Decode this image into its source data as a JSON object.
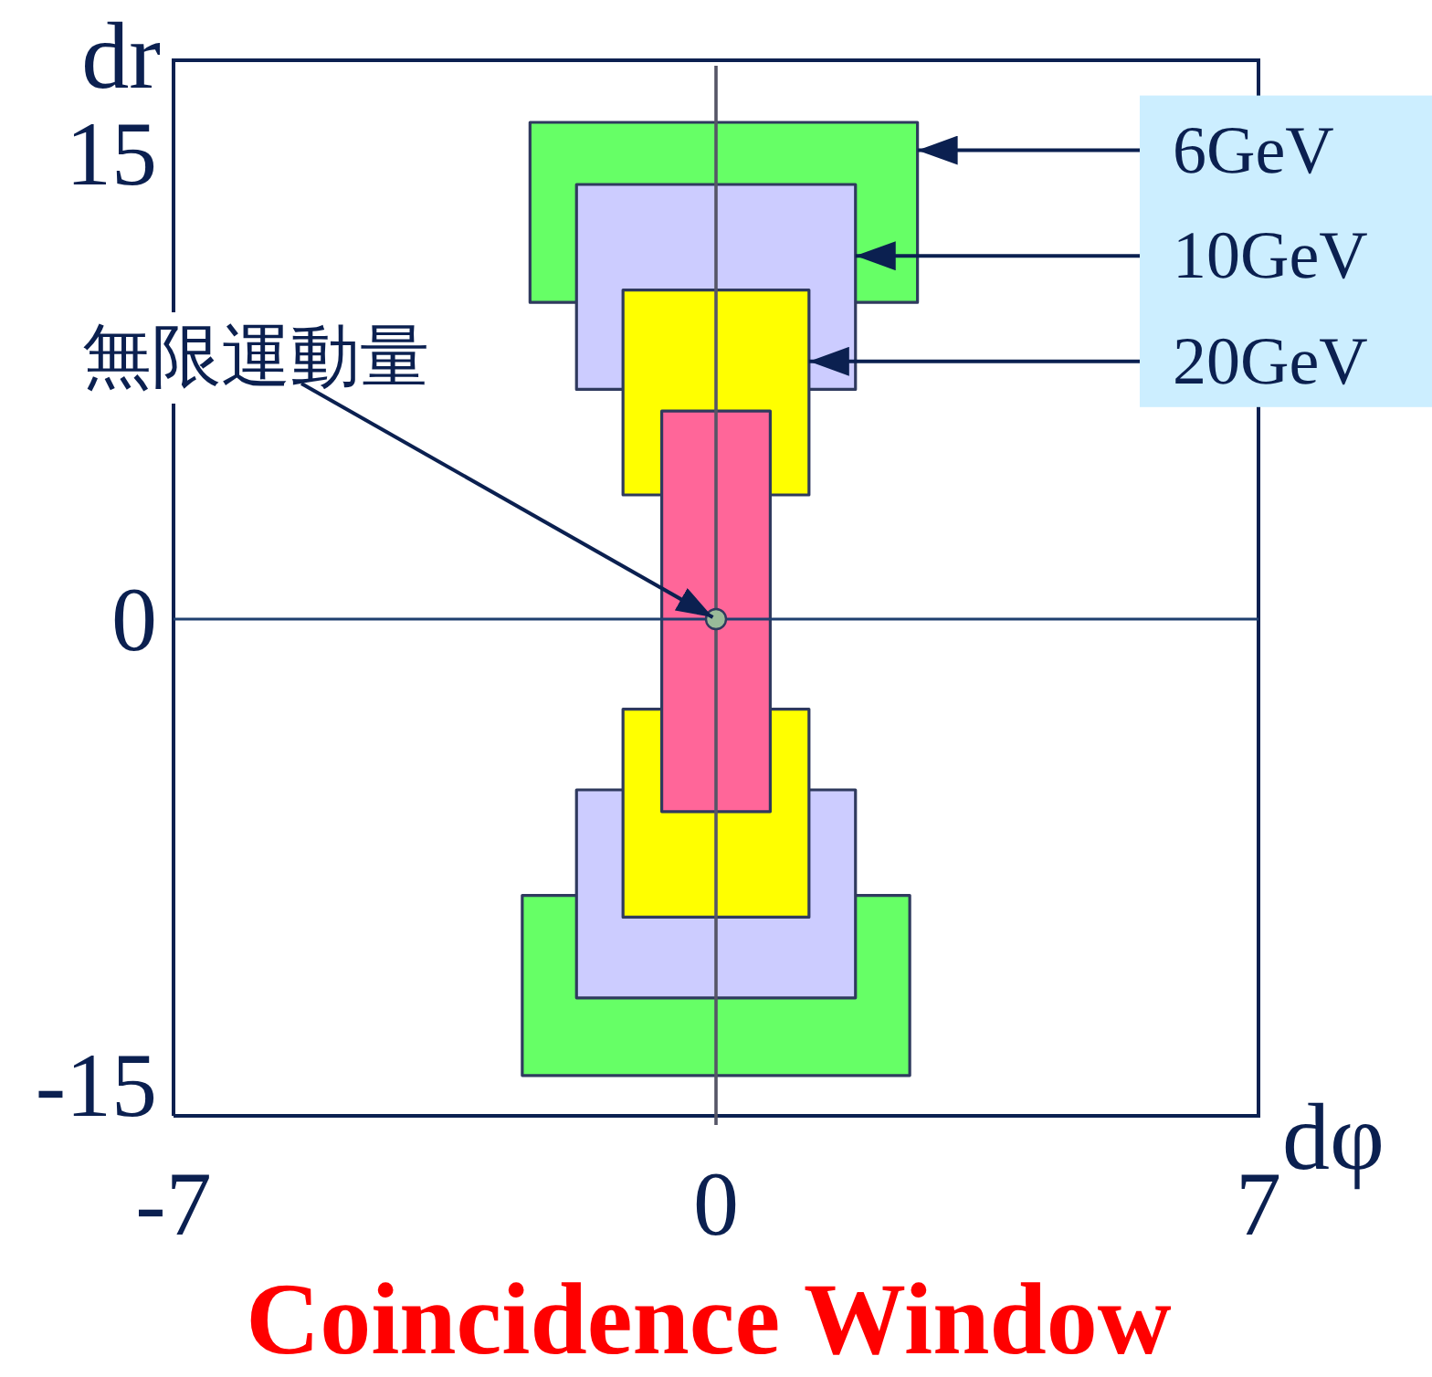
{
  "chart_data": {
    "type": "area",
    "title": "Coincidence Window",
    "xlabel": "dφ",
    "ylabel": "dr",
    "xlim": [
      -7,
      7
    ],
    "ylim": [
      -16,
      18
    ],
    "xticks": [
      -7,
      0,
      7
    ],
    "yticks": [
      -15,
      0,
      15
    ],
    "series": [
      {
        "color": "#66ff66",
        "x": [
          -2.4,
          2.6
        ],
        "values": [
          null,
          null
        ],
        "lower": [
          10.2,
          10.2
        ],
        "upper": [
          16.0,
          16.0
        ]
      },
      {
        "color": "#66ff66",
        "x": [
          -2.5,
          2.5
        ],
        "values": [
          null,
          null
        ],
        "lower": [
          -14.7,
          -14.7
        ],
        "upper": [
          -8.9,
          -8.9
        ]
      },
      {
        "color": "#ccccff",
        "x": [
          -1.8,
          1.8
        ],
        "values": [
          null,
          null
        ],
        "lower": [
          7.4,
          7.4
        ],
        "upper": [
          14.0,
          14.0
        ]
      },
      {
        "color": "#ccccff",
        "x": [
          -1.8,
          1.8
        ],
        "values": [
          null,
          null
        ],
        "lower": [
          -12.2,
          -12.2
        ],
        "upper": [
          -5.5,
          -5.5
        ]
      },
      {
        "color": "#ffff00",
        "x": [
          -1.2,
          1.2
        ],
        "values": [
          null,
          null
        ],
        "lower": [
          4.0,
          4.0
        ],
        "upper": [
          10.6,
          10.6
        ]
      },
      {
        "color": "#ffff00",
        "x": [
          -1.2,
          1.2
        ],
        "values": [
          null,
          null
        ],
        "lower": [
          -9.6,
          -9.6
        ],
        "upper": [
          -2.9,
          -2.9
        ]
      },
      {
        "color": "#ff6699",
        "x": [
          -0.7,
          0.7
        ],
        "values": [
          null,
          null
        ],
        "lower": [
          -6.2,
          -6.2
        ],
        "upper": [
          6.7,
          6.7
        ]
      },
      {
        "type": "scatter",
        "color": "#99bb99",
        "x": [
          0
        ],
        "values": [
          0
        ],
        "marker": "circle"
      }
    ],
    "ref_lines": [
      {
        "axis": "x",
        "value": 0,
        "color": "#555566"
      },
      {
        "axis": "y",
        "value": 0,
        "color": "#1f3f6f"
      }
    ],
    "annotations": [
      {
        "text": "6GeV",
        "x": 2.6,
        "y": 15.1
      },
      {
        "text": "10GeV",
        "x": 1.8,
        "y": 11.7
      },
      {
        "text": "20GeV",
        "x": 1.2,
        "y": 8.3
      },
      {
        "text": "無限運動量",
        "x": 0,
        "y": 0
      }
    ]
  }
}
